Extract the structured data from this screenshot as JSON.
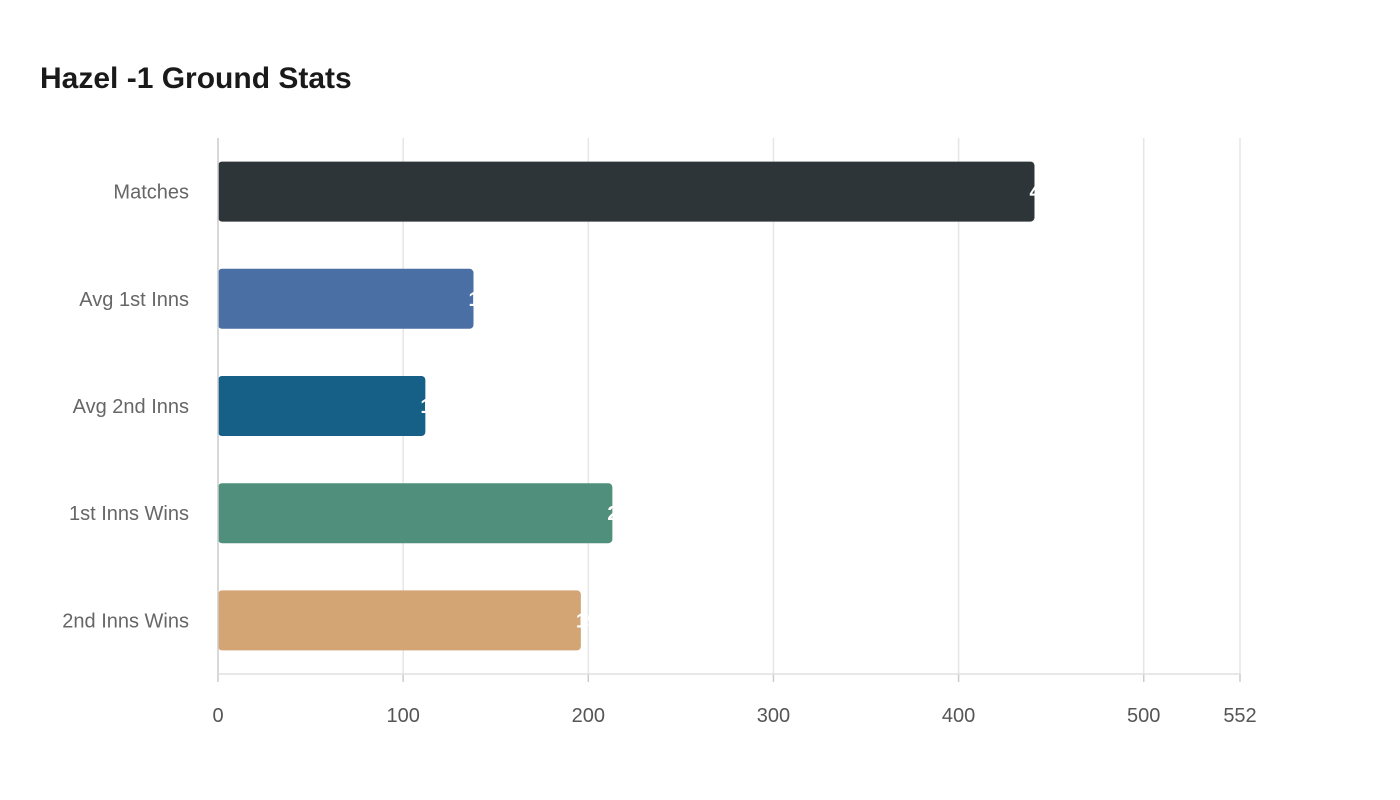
{
  "chart_data": {
    "type": "bar",
    "orientation": "horizontal",
    "title": "Hazel -1 Ground Stats",
    "categories": [
      "Matches",
      "Avg 1st Inns",
      "Avg 2nd Inns",
      "1st Inns Wins",
      "2nd Inns Wins"
    ],
    "values": [
      441,
      138,
      112,
      213,
      196
    ],
    "colors": [
      "#2e3538",
      "#4a6fa5",
      "#166088",
      "#4f8f7c",
      "#d4a574"
    ],
    "xlim": [
      0,
      552
    ],
    "xticks": [
      0,
      100,
      200,
      300,
      400,
      500,
      552
    ],
    "xlabel": "",
    "ylabel": "",
    "grid": true,
    "legend": "none"
  }
}
